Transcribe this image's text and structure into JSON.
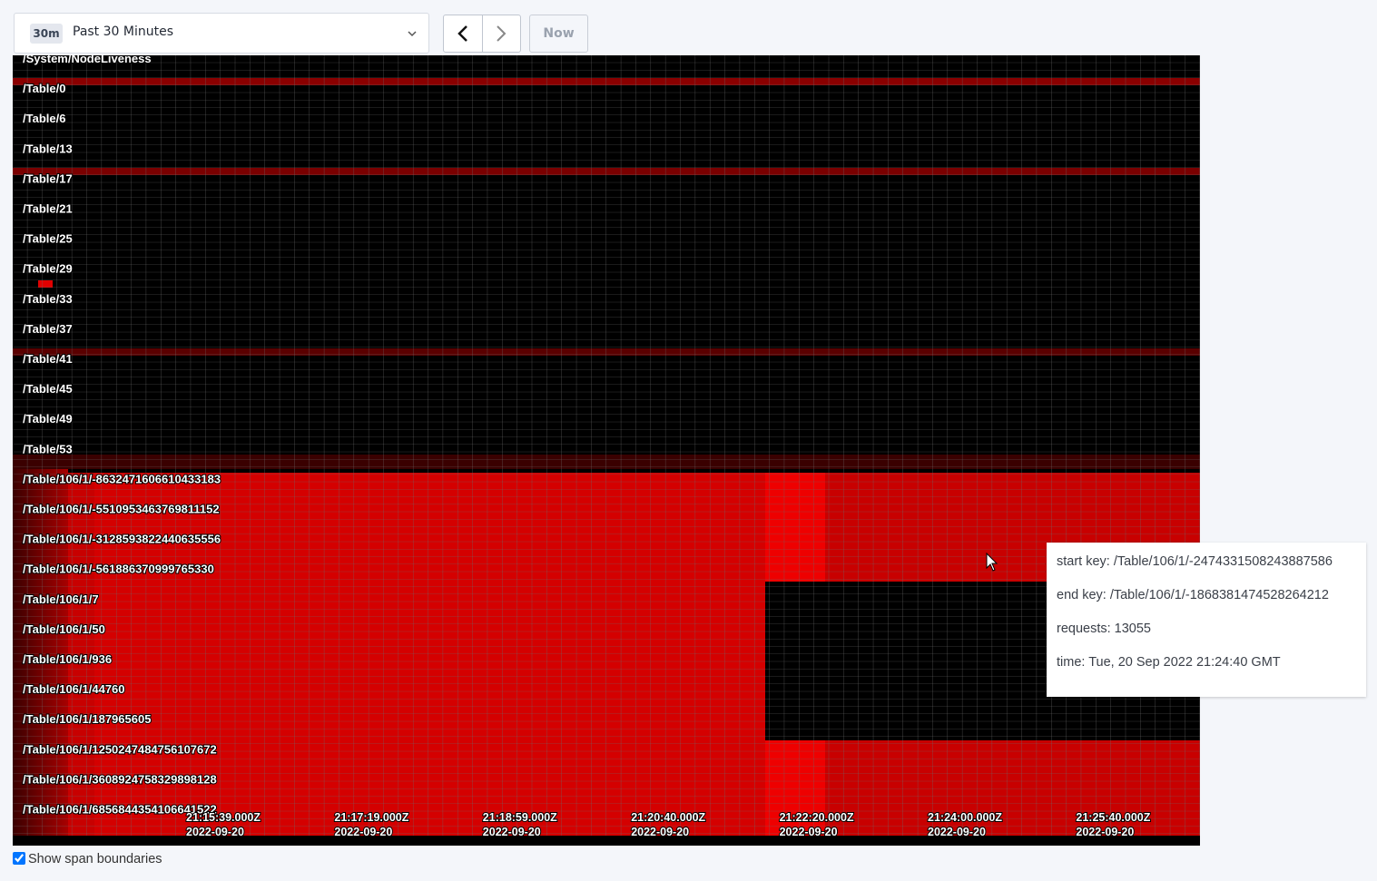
{
  "time_picker": {
    "badge": "30m",
    "label": "Past 30 Minutes",
    "now_button": "Now"
  },
  "heatmap": {
    "y_labels": [
      "/System/NodeLiveness",
      "/Table/0",
      "/Table/6",
      "/Table/13",
      "/Table/17",
      "/Table/21",
      "/Table/25",
      "/Table/29",
      "/Table/33",
      "/Table/37",
      "/Table/41",
      "/Table/45",
      "/Table/49",
      "/Table/53",
      "/Table/106/1/-8632471606610433183",
      "/Table/106/1/-5510953463769811152",
      "/Table/106/1/-3128593822440635556",
      "/Table/106/1/-561886370999765330",
      "/Table/106/1/7",
      "/Table/106/1/50",
      "/Table/106/1/936",
      "/Table/106/1/44760",
      "/Table/106/1/187965605",
      "/Table/106/1/1250247484756107672",
      "/Table/106/1/3608924758329898128",
      "/Table/106/1/6856844354106641522"
    ],
    "x_labels": [
      {
        "time": "21:15:39.000Z",
        "date": "2022-09-20"
      },
      {
        "time": "21:17:19.000Z",
        "date": "2022-09-20"
      },
      {
        "time": "21:18:59.000Z",
        "date": "2022-09-20"
      },
      {
        "time": "21:20:40.000Z",
        "date": "2022-09-20"
      },
      {
        "time": "21:22:20.000Z",
        "date": "2022-09-20"
      },
      {
        "time": "21:24:00.000Z",
        "date": "2022-09-20"
      },
      {
        "time": "21:25:40.000Z",
        "date": "2022-09-20"
      }
    ]
  },
  "tooltip": [
    "start key: /Table/106/1/-2474331508243887586",
    "end key: /Table/106/1/-1868381474528264212",
    "requests: 13055",
    "time: Tue, 20 Sep 2022 21:24:40 GMT"
  ],
  "checkbox": {
    "label": "Show span boundaries",
    "checked": true
  }
}
